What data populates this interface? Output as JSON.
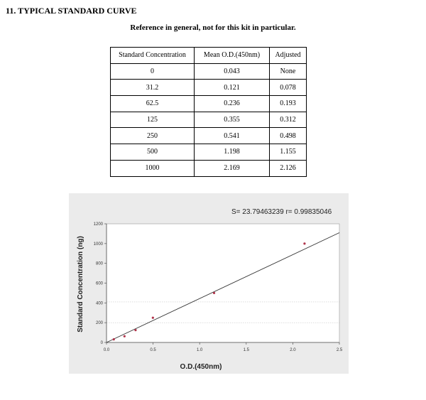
{
  "header": {
    "section_title": "11. TYPICAL STANDARD CURVE",
    "subtitle": "Reference in general, not for this kit in particular."
  },
  "table": {
    "headers": [
      "Standard Concentration",
      "Mean O.D.(450nm)",
      "Adjusted"
    ],
    "rows": [
      [
        "0",
        "0.043",
        "None"
      ],
      [
        "31.2",
        "0.121",
        "0.078"
      ],
      [
        "62.5",
        "0.236",
        "0.193"
      ],
      [
        "125",
        "0.355",
        "0.312"
      ],
      [
        "250",
        "0.541",
        "0.498"
      ],
      [
        "500",
        "1.198",
        "1.155"
      ],
      [
        "1000",
        "2.169",
        "2.126"
      ]
    ]
  },
  "chart_data": {
    "type": "scatter",
    "xlabel": "O.D.(450nm)",
    "ylabel": "Standard Concentration (ng)",
    "xlim": [
      0,
      2.5
    ],
    "ylim": [
      0,
      1200
    ],
    "xticks": [
      "0.0",
      "0.5",
      "1.0",
      "1.5",
      "2.0",
      "2.5"
    ],
    "yticks": [
      "0",
      "200",
      "400",
      "600",
      "800",
      "1000",
      "1200"
    ],
    "annotation": "S= 23.79463239  r= 0.99835046",
    "points": [
      {
        "x": 0.078,
        "y": 31.2
      },
      {
        "x": 0.193,
        "y": 62.5
      },
      {
        "x": 0.312,
        "y": 125
      },
      {
        "x": 0.498,
        "y": 250
      },
      {
        "x": 1.155,
        "y": 500
      },
      {
        "x": 2.126,
        "y": 1000
      }
    ],
    "fit_line": {
      "x": [
        0.0,
        2.5
      ],
      "y": [
        0,
        1110
      ]
    },
    "reference_lines": [
      {
        "axis": "y",
        "value": 410
      },
      {
        "axis": "y",
        "value": 200
      }
    ],
    "colors": {
      "points": "#b0334a",
      "fit_line": "#333333",
      "background": "#ebebeb",
      "reference_lines": "#c8c8c8"
    },
    "grid": false
  }
}
